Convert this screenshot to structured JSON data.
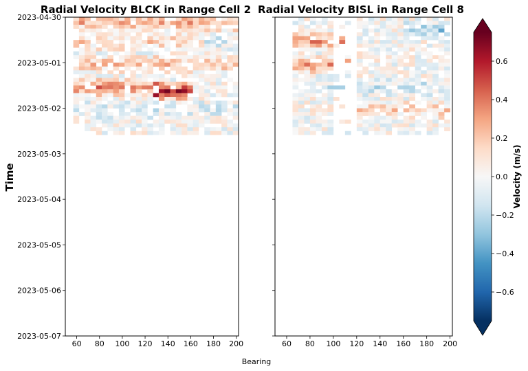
{
  "chart_data": [
    {
      "type": "heatmap",
      "title": "Radial Velocity BLCK in Range Cell 2",
      "xlabel": "Bearing",
      "ylabel": "Time",
      "xlim": [
        50,
        202
      ],
      "xticks": [
        60,
        80,
        100,
        120,
        140,
        160,
        180,
        200
      ],
      "ylim": [
        "2023-04-30",
        "2023-05-07"
      ],
      "yticks": [
        "2023-04-30",
        "2023-05-01",
        "2023-05-02",
        "2023-05-03",
        "2023-05-04",
        "2023-05-05",
        "2023-05-06",
        "2023-05-07"
      ],
      "data_extent": {
        "bearing": [
          57,
          200
        ],
        "time": [
          "2023-04-30T00:00",
          "2023-05-02T13:00"
        ]
      },
      "bands": [
        {
          "time": "2023-04-30T02:00",
          "bearing": [
            57,
            200
          ],
          "velocity": 0.25
        },
        {
          "time": "2023-04-30T12:00",
          "bearing": [
            57,
            200
          ],
          "velocity": 0.15
        },
        {
          "time": "2023-05-01T00:00",
          "bearing": [
            57,
            200
          ],
          "velocity": 0.2
        },
        {
          "time": "2023-05-01T12:00",
          "bearing": [
            57,
            130
          ],
          "velocity": 0.35
        },
        {
          "time": "2023-05-01T14:00",
          "bearing": [
            125,
            160
          ],
          "velocity": 0.6
        },
        {
          "time": "2023-05-02T00:00",
          "bearing": [
            57,
            200
          ],
          "velocity": -0.1
        },
        {
          "time": "2023-04-30T12:00",
          "bearing": [
            170,
            200
          ],
          "velocity": -0.25
        }
      ]
    },
    {
      "type": "heatmap",
      "title": "Radial Velocity BISL in Range Cell 8",
      "xlabel": "Bearing",
      "ylabel": "Time",
      "xlim": [
        50,
        202
      ],
      "xticks": [
        60,
        80,
        100,
        120,
        140,
        160,
        180,
        200
      ],
      "ylim": [
        "2023-04-30",
        "2023-05-07"
      ],
      "yticks": [
        "2023-04-30",
        "2023-05-01",
        "2023-05-02",
        "2023-05-03",
        "2023-05-04",
        "2023-05-05",
        "2023-05-06",
        "2023-05-07"
      ],
      "data_extent": {
        "bearing": [
          65,
          200
        ],
        "time": [
          "2023-04-30T00:00",
          "2023-05-02T13:00"
        ]
      },
      "bands": [
        {
          "time": "2023-04-30T12:00",
          "bearing": [
            65,
            110
          ],
          "velocity": 0.3
        },
        {
          "time": "2023-05-01T00:00",
          "bearing": [
            65,
            110
          ],
          "velocity": 0.3
        },
        {
          "time": "2023-04-30T06:00",
          "bearing": [
            160,
            200
          ],
          "velocity": -0.25
        },
        {
          "time": "2023-05-01T12:00",
          "bearing": [
            65,
            200
          ],
          "velocity": -0.15
        },
        {
          "time": "2023-05-02T00:00",
          "bearing": [
            120,
            200
          ],
          "velocity": 0.15
        }
      ]
    }
  ],
  "colorbar": {
    "label": "Velocity (m/s)",
    "range": [
      -0.75,
      0.75
    ],
    "ticks": [
      "0.6",
      "0.4",
      "0.2",
      "0.0",
      "−0.2",
      "−0.4",
      "−0.6"
    ],
    "tick_values": [
      0.6,
      0.4,
      0.2,
      0.0,
      -0.2,
      -0.4,
      -0.6
    ],
    "extend": "both",
    "colormap": "RdBu_r"
  },
  "figure": {
    "shared_xlabel": "Bearing",
    "shared_ylabel": "Time"
  }
}
